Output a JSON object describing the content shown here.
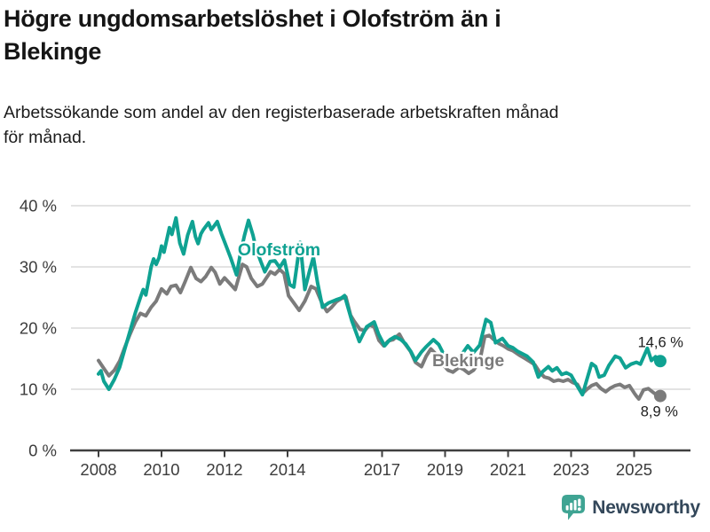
{
  "header": {
    "title_lines": [
      "Högre ungdomsarbetslöshet i Olofström än i",
      "Blekinge"
    ],
    "subtitle_lines": [
      "Arbetssökande som andel av den registerbaserade arbetskraften månad",
      "för månad."
    ]
  },
  "chart_data": {
    "type": "line",
    "title": "Högre ungdomsarbetslöshet i Olofström än i Blekinge",
    "subtitle": "Arbetssökande som andel av den registerbaserade arbetskraften månad för månad.",
    "grid": true,
    "x_axis": {
      "ticks": [
        2008,
        2010,
        2012,
        2014,
        2017,
        2019,
        2021,
        2023,
        2025
      ],
      "range": [
        2008,
        2025.9
      ]
    },
    "y_axis": {
      "unit": "%",
      "ticks": [
        {
          "value": 0,
          "label": "0 %"
        },
        {
          "value": 10,
          "label": "10 %"
        },
        {
          "value": 20,
          "label": "20 %"
        },
        {
          "value": 30,
          "label": "30 %"
        },
        {
          "value": 40,
          "label": "40 %"
        }
      ],
      "range": [
        0,
        42
      ]
    },
    "series": [
      {
        "name": "Olofström",
        "color": "#0fa292",
        "end_label": "14,6 %",
        "end_value": 14.6,
        "inline_label_pos": {
          "x": 2012.42,
          "y": 32.9
        },
        "points": [
          [
            2008.0,
            12.5
          ],
          [
            2008.08,
            13.0
          ],
          [
            2008.17,
            11.3
          ],
          [
            2008.33,
            10.0
          ],
          [
            2008.5,
            11.6
          ],
          [
            2008.67,
            13.6
          ],
          [
            2008.83,
            16.5
          ],
          [
            2009.0,
            19.5
          ],
          [
            2009.17,
            22.5
          ],
          [
            2009.33,
            25.0
          ],
          [
            2009.42,
            26.3
          ],
          [
            2009.5,
            25.4
          ],
          [
            2009.58,
            27.5
          ],
          [
            2009.67,
            30.0
          ],
          [
            2009.75,
            31.3
          ],
          [
            2009.83,
            30.4
          ],
          [
            2009.92,
            31.5
          ],
          [
            2010.0,
            33.4
          ],
          [
            2010.08,
            32.4
          ],
          [
            2010.17,
            34.5
          ],
          [
            2010.25,
            36.4
          ],
          [
            2010.33,
            35.3
          ],
          [
            2010.46,
            38.0
          ],
          [
            2010.58,
            33.9
          ],
          [
            2010.7,
            32.1
          ],
          [
            2010.83,
            35.2
          ],
          [
            2010.98,
            37.4
          ],
          [
            2011.08,
            34.9
          ],
          [
            2011.16,
            33.8
          ],
          [
            2011.25,
            35.4
          ],
          [
            2011.33,
            36.1
          ],
          [
            2011.49,
            37.2
          ],
          [
            2011.58,
            36.1
          ],
          [
            2011.67,
            36.7
          ],
          [
            2011.77,
            37.4
          ],
          [
            2011.9,
            35.4
          ],
          [
            2012.06,
            33.3
          ],
          [
            2012.2,
            31.4
          ],
          [
            2012.38,
            28.7
          ],
          [
            2012.5,
            32.1
          ],
          [
            2012.63,
            35.1
          ],
          [
            2012.76,
            37.6
          ],
          [
            2012.9,
            35.2
          ],
          [
            2013.0,
            33.0
          ],
          [
            2013.15,
            30.9
          ],
          [
            2013.28,
            29.2
          ],
          [
            2013.45,
            30.9
          ],
          [
            2013.6,
            31.0
          ],
          [
            2013.75,
            29.9
          ],
          [
            2013.9,
            31.1
          ],
          [
            2014.07,
            27.1
          ],
          [
            2014.2,
            26.7
          ],
          [
            2014.4,
            34.0
          ],
          [
            2014.55,
            26.3
          ],
          [
            2014.7,
            29.4
          ],
          [
            2014.82,
            31.6
          ],
          [
            2014.95,
            27.5
          ],
          [
            2015.11,
            23.4
          ],
          [
            2015.3,
            24.1
          ],
          [
            2015.53,
            24.6
          ],
          [
            2015.7,
            24.9
          ],
          [
            2015.81,
            25.3
          ],
          [
            2016.04,
            21.2
          ],
          [
            2016.28,
            17.8
          ],
          [
            2016.51,
            20.2
          ],
          [
            2016.75,
            21.0
          ],
          [
            2016.89,
            19.0
          ],
          [
            2017.08,
            17.1
          ],
          [
            2017.25,
            18.1
          ],
          [
            2017.41,
            18.6
          ],
          [
            2017.6,
            18.1
          ],
          [
            2017.75,
            17.4
          ],
          [
            2017.92,
            16.1
          ],
          [
            2018.06,
            14.7
          ],
          [
            2018.25,
            16.1
          ],
          [
            2018.39,
            16.9
          ],
          [
            2018.63,
            18.1
          ],
          [
            2018.8,
            17.3
          ],
          [
            2018.95,
            15.8
          ],
          [
            2019.1,
            14.0
          ],
          [
            2019.3,
            14.6
          ],
          [
            2019.5,
            15.5
          ],
          [
            2019.72,
            17.1
          ],
          [
            2019.9,
            16.0
          ],
          [
            2020.1,
            17.2
          ],
          [
            2020.3,
            21.4
          ],
          [
            2020.45,
            20.9
          ],
          [
            2020.6,
            17.6
          ],
          [
            2020.82,
            18.3
          ],
          [
            2021.0,
            17.1
          ],
          [
            2021.15,
            16.8
          ],
          [
            2021.3,
            16.2
          ],
          [
            2021.6,
            15.4
          ],
          [
            2021.8,
            14.4
          ],
          [
            2021.96,
            12.0
          ],
          [
            2022.1,
            12.9
          ],
          [
            2022.28,
            13.7
          ],
          [
            2022.4,
            13.0
          ],
          [
            2022.55,
            13.5
          ],
          [
            2022.7,
            12.4
          ],
          [
            2022.85,
            12.7
          ],
          [
            2023.0,
            12.3
          ],
          [
            2023.13,
            11.1
          ],
          [
            2023.36,
            9.1
          ],
          [
            2023.5,
            11.6
          ],
          [
            2023.65,
            14.2
          ],
          [
            2023.78,
            13.7
          ],
          [
            2023.89,
            12.0
          ],
          [
            2024.05,
            12.3
          ],
          [
            2024.2,
            13.9
          ],
          [
            2024.4,
            15.4
          ],
          [
            2024.55,
            15.1
          ],
          [
            2024.73,
            13.5
          ],
          [
            2024.9,
            14.1
          ],
          [
            2025.07,
            14.4
          ],
          [
            2025.2,
            14.1
          ],
          [
            2025.42,
            16.7
          ],
          [
            2025.55,
            14.7
          ],
          [
            2025.68,
            15.3
          ],
          [
            2025.83,
            14.6
          ]
        ]
      },
      {
        "name": "Blekinge",
        "color": "#7b7b7b",
        "end_label": "8,9 %",
        "end_value": 8.9,
        "inline_label_pos": {
          "x": 2018.59,
          "y": 14.8
        },
        "points": [
          [
            2008.0,
            14.7
          ],
          [
            2008.17,
            13.4
          ],
          [
            2008.33,
            12.2
          ],
          [
            2008.5,
            13.1
          ],
          [
            2008.67,
            14.6
          ],
          [
            2008.83,
            16.8
          ],
          [
            2009.0,
            19.0
          ],
          [
            2009.17,
            21.0
          ],
          [
            2009.33,
            22.4
          ],
          [
            2009.5,
            22.0
          ],
          [
            2009.67,
            23.4
          ],
          [
            2009.83,
            24.4
          ],
          [
            2010.0,
            26.4
          ],
          [
            2010.17,
            25.6
          ],
          [
            2010.3,
            26.8
          ],
          [
            2010.46,
            27.0
          ],
          [
            2010.6,
            25.8
          ],
          [
            2010.75,
            27.6
          ],
          [
            2010.93,
            29.9
          ],
          [
            2011.1,
            28.1
          ],
          [
            2011.25,
            27.6
          ],
          [
            2011.4,
            28.4
          ],
          [
            2011.58,
            29.9
          ],
          [
            2011.7,
            29.1
          ],
          [
            2011.85,
            27.2
          ],
          [
            2012.0,
            28.2
          ],
          [
            2012.2,
            27.1
          ],
          [
            2012.34,
            26.3
          ],
          [
            2012.57,
            30.4
          ],
          [
            2012.7,
            30.0
          ],
          [
            2012.85,
            28.1
          ],
          [
            2013.04,
            26.8
          ],
          [
            2013.2,
            27.2
          ],
          [
            2013.46,
            29.2
          ],
          [
            2013.6,
            28.8
          ],
          [
            2013.75,
            29.6
          ],
          [
            2013.89,
            28.9
          ],
          [
            2014.03,
            25.3
          ],
          [
            2014.2,
            24.1
          ],
          [
            2014.37,
            22.9
          ],
          [
            2014.55,
            24.4
          ],
          [
            2014.75,
            26.8
          ],
          [
            2014.9,
            26.4
          ],
          [
            2015.1,
            24.0
          ],
          [
            2015.25,
            22.7
          ],
          [
            2015.4,
            23.4
          ],
          [
            2015.55,
            24.3
          ],
          [
            2015.7,
            24.8
          ],
          [
            2015.85,
            25.1
          ],
          [
            2016.0,
            22.1
          ],
          [
            2016.13,
            21.0
          ],
          [
            2016.3,
            19.8
          ],
          [
            2016.45,
            19.6
          ],
          [
            2016.6,
            20.5
          ],
          [
            2016.75,
            20.2
          ],
          [
            2016.9,
            18.0
          ],
          [
            2017.05,
            17.1
          ],
          [
            2017.2,
            17.9
          ],
          [
            2017.35,
            18.1
          ],
          [
            2017.55,
            19.0
          ],
          [
            2017.7,
            17.6
          ],
          [
            2017.9,
            16.2
          ],
          [
            2018.06,
            14.4
          ],
          [
            2018.25,
            13.7
          ],
          [
            2018.4,
            15.4
          ],
          [
            2018.55,
            16.6
          ],
          [
            2018.7,
            15.8
          ],
          [
            2018.9,
            14.2
          ],
          [
            2019.1,
            13.1
          ],
          [
            2019.25,
            12.8
          ],
          [
            2019.45,
            13.6
          ],
          [
            2019.6,
            13.2
          ],
          [
            2019.75,
            12.6
          ],
          [
            2019.9,
            13.1
          ],
          [
            2020.1,
            14.6
          ],
          [
            2020.26,
            18.6
          ],
          [
            2020.4,
            18.8
          ],
          [
            2020.55,
            18.1
          ],
          [
            2020.7,
            17.5
          ],
          [
            2020.85,
            17.1
          ],
          [
            2021.0,
            16.6
          ],
          [
            2021.15,
            16.3
          ],
          [
            2021.35,
            15.6
          ],
          [
            2021.55,
            15.0
          ],
          [
            2021.7,
            14.5
          ],
          [
            2021.85,
            14.0
          ],
          [
            2022.0,
            12.8
          ],
          [
            2022.15,
            12.0
          ],
          [
            2022.3,
            11.8
          ],
          [
            2022.45,
            11.3
          ],
          [
            2022.6,
            11.5
          ],
          [
            2022.75,
            11.3
          ],
          [
            2022.9,
            11.6
          ],
          [
            2023.05,
            11.1
          ],
          [
            2023.2,
            10.8
          ],
          [
            2023.36,
            9.3
          ],
          [
            2023.5,
            10.0
          ],
          [
            2023.65,
            10.6
          ],
          [
            2023.8,
            10.9
          ],
          [
            2023.95,
            10.1
          ],
          [
            2024.1,
            9.6
          ],
          [
            2024.25,
            10.2
          ],
          [
            2024.4,
            10.6
          ],
          [
            2024.55,
            10.8
          ],
          [
            2024.7,
            10.3
          ],
          [
            2024.85,
            10.6
          ],
          [
            2025.0,
            9.4
          ],
          [
            2025.07,
            8.9
          ],
          [
            2025.15,
            8.4
          ],
          [
            2025.3,
            9.9
          ],
          [
            2025.45,
            10.1
          ],
          [
            2025.6,
            9.5
          ],
          [
            2025.7,
            9.1
          ],
          [
            2025.83,
            8.9
          ]
        ]
      }
    ],
    "colors": {
      "olofstrom": "#0fa292",
      "blekinge": "#7b7b7b",
      "grid": "#dadada",
      "axis": "#3f3f3f",
      "tick_text": "#3c3c3c",
      "annotation_text": "#1d1d1d"
    },
    "legend_position": "inline"
  },
  "footer": {
    "brand": "Newsworthy",
    "logo_icon": "newsworthy-bar-chart-speech-bubble",
    "logo_color": "#3fa493",
    "brand_text_color": "#33475a"
  }
}
